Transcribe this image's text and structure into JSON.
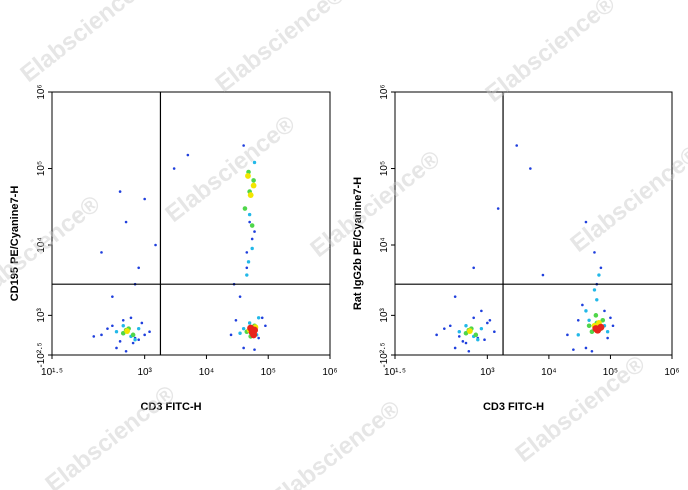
{
  "watermark": "Elabscience®",
  "chart_data": [
    {
      "type": "scatter",
      "xlabel": "CD3 FITC-H",
      "ylabel": "CD195 PE/Cyanine7-H",
      "xscale": "log",
      "yscale": "logicle",
      "xlim": [
        31.62,
        1000000
      ],
      "ylim": [
        -316.2,
        1000000
      ],
      "xticks": [
        {
          "value": 31.62,
          "label": "10¹·⁵"
        },
        {
          "value": 1000,
          "label": "10³"
        },
        {
          "value": 10000,
          "label": "10⁴"
        },
        {
          "value": 100000,
          "label": "10⁵"
        },
        {
          "value": 1000000,
          "label": "10⁶"
        }
      ],
      "yticks": [
        {
          "value": -316.2,
          "label": "-10²·⁵"
        },
        {
          "value": 1000,
          "label": "10³"
        },
        {
          "value": 10000,
          "label": "10⁴"
        },
        {
          "value": 100000,
          "label": "10⁵"
        },
        {
          "value": 1000000,
          "label": "10⁶"
        }
      ],
      "gate": {
        "x": 1800,
        "y": 3000
      },
      "series": [
        {
          "color": "#1f3fdd",
          "x": [
            200,
            300,
            400,
            700,
            900,
            1200,
            350,
            600,
            800,
            250,
            500,
            1000,
            150,
            450,
            650,
            25000,
            30000,
            40000,
            70000,
            90000,
            35000,
            45000,
            80000,
            60000,
            28000,
            300,
            800,
            1500,
            500,
            200,
            3000,
            5000,
            400,
            700,
            1000,
            50000,
            45000,
            60000,
            40000,
            55000
          ],
          "values": [
            300,
            600,
            100,
            200,
            700,
            400,
            -100,
            900,
            150,
            500,
            -200,
            300,
            250,
            800,
            50,
            300,
            800,
            -100,
            200,
            600,
            2000,
            5000,
            900,
            -150,
            3000,
            2000,
            5000,
            10000,
            20000,
            8000,
            100000,
            150000,
            50000,
            3000,
            40000,
            20000,
            8000,
            15000,
            200000,
            12000
          ]
        },
        {
          "color": "#22b8e8",
          "x": [
            350,
            600,
            450,
            800,
            700,
            40000,
            65000,
            50000,
            35000,
            70000,
            45000,
            55000,
            50000,
            60000,
            48000
          ],
          "values": [
            400,
            250,
            600,
            500,
            150,
            500,
            300,
            700,
            350,
            900,
            4000,
            9000,
            25000,
            120000,
            6000
          ]
        },
        {
          "color": "#4fd64a",
          "x": [
            450,
            550,
            650,
            500,
            45000,
            60000,
            52000,
            42000,
            58000,
            50000,
            55000,
            48000
          ],
          "values": [
            350,
            500,
            300,
            450,
            400,
            600,
            250,
            30000,
            70000,
            50000,
            18000,
            90000
          ]
        },
        {
          "color": "#f2e600",
          "x": [
            520,
            55000,
            62000,
            50000,
            58000,
            52000,
            47000
          ],
          "values": [
            420,
            350,
            550,
            450,
            60000,
            45000,
            80000
          ]
        },
        {
          "color": "#e8241c",
          "x": [
            55000,
            60000,
            52000,
            58000
          ],
          "values": [
            380,
            450,
            520,
            300
          ]
        }
      ]
    },
    {
      "type": "scatter",
      "xlabel": "CD3 FITC-H",
      "ylabel": "Rat IgG2b PE/Cyanine7-H",
      "xscale": "log",
      "yscale": "logicle",
      "xlim": [
        31.62,
        1000000
      ],
      "ylim": [
        -316.2,
        1000000
      ],
      "xticks": [
        {
          "value": 31.62,
          "label": "10¹·⁵"
        },
        {
          "value": 1000,
          "label": "10³"
        },
        {
          "value": 10000,
          "label": "10⁴"
        },
        {
          "value": 100000,
          "label": "10⁵"
        },
        {
          "value": 1000000,
          "label": "10⁶"
        }
      ],
      "yticks": [
        {
          "value": -316.2,
          "label": "-10²·⁵"
        },
        {
          "value": 1000,
          "label": "10³"
        },
        {
          "value": 10000,
          "label": "10⁴"
        },
        {
          "value": 100000,
          "label": "10⁵"
        },
        {
          "value": 1000000,
          "label": "10⁶"
        }
      ],
      "gate": {
        "x": 1800,
        "y": 3000
      },
      "series": [
        {
          "color": "#1f3fdd",
          "x": [
            150,
            250,
            400,
            700,
            1000,
            1300,
            300,
            600,
            900,
            200,
            500,
            800,
            350,
            1100,
            450,
            20000,
            30000,
            40000,
            90000,
            110000,
            35000,
            25000,
            100000,
            50000,
            80000,
            300,
            600,
            1500,
            5000,
            8000,
            60000,
            70000,
            55000,
            40000,
            3000
          ],
          "values": [
            300,
            600,
            100,
            200,
            700,
            400,
            -100,
            900,
            150,
            500,
            -200,
            1200,
            250,
            800,
            50,
            300,
            800,
            -100,
            200,
            600,
            1500,
            -150,
            900,
            -200,
            1200,
            2000,
            5000,
            30000,
            100000,
            4000,
            3000,
            5000,
            8000,
            20000,
            200000
          ]
        },
        {
          "color": "#22b8e8",
          "x": [
            350,
            600,
            450,
            800,
            700,
            30000,
            45000,
            80000,
            40000,
            90000,
            55000,
            65000,
            60000
          ],
          "values": [
            400,
            250,
            600,
            500,
            150,
            300,
            800,
            600,
            1200,
            400,
            2500,
            4000,
            1800
          ]
        },
        {
          "color": "#4fd64a",
          "x": [
            450,
            550,
            650,
            500,
            50000,
            70000,
            60000,
            45000,
            75000,
            58000
          ],
          "values": [
            350,
            500,
            300,
            450,
            400,
            500,
            700,
            600,
            800,
            1000
          ]
        },
        {
          "color": "#f2e600",
          "x": [
            520,
            60000,
            68000,
            55000,
            65000
          ],
          "values": [
            420,
            450,
            550,
            600,
            700
          ]
        },
        {
          "color": "#e8241c",
          "x": [
            62000,
            70000,
            58000
          ],
          "values": [
            450,
            550,
            500
          ]
        }
      ]
    }
  ]
}
